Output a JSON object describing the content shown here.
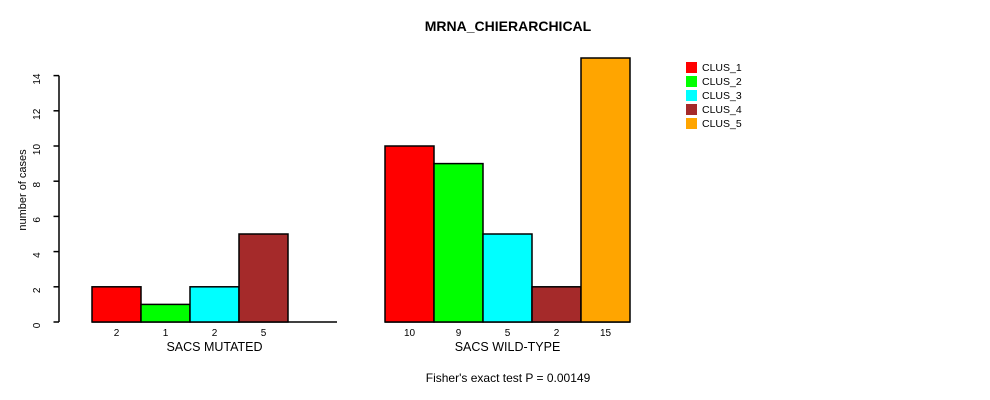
{
  "chart_data": {
    "type": "bar",
    "title": "MRNA_CHIERARCHICAL",
    "ylabel": "number of cases",
    "ylim": [
      0,
      14
    ],
    "yticks": [
      0,
      2,
      4,
      6,
      8,
      10,
      12,
      14
    ],
    "grid": false,
    "legend": {
      "position": "right",
      "entries": [
        {
          "label": "CLUS_1",
          "color": "#FF0000"
        },
        {
          "label": "CLUS_2",
          "color": "#00FF00"
        },
        {
          "label": "CLUS_3",
          "color": "#00FFFF"
        },
        {
          "label": "CLUS_4",
          "color": "#A52A2A"
        },
        {
          "label": "CLUS_5",
          "color": "#FFA500"
        }
      ]
    },
    "groups": [
      {
        "label": "SACS MUTATED",
        "values": [
          2,
          1,
          2,
          5,
          0
        ],
        "bar_labels": [
          "2",
          "1",
          "2",
          "5",
          ""
        ]
      },
      {
        "label": "SACS WILD-TYPE",
        "values": [
          10,
          9,
          5,
          2,
          15
        ],
        "bar_labels": [
          "10",
          "9",
          "5",
          "2",
          "15"
        ]
      }
    ],
    "annotation": "Fisher's exact test P = 0.00149"
  }
}
